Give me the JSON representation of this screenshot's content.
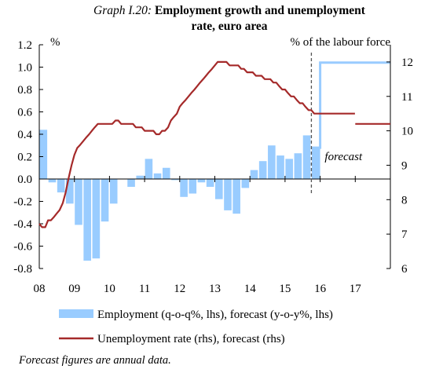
{
  "chart_data": {
    "type": "bar+line",
    "title_prefix": "Graph I.20:",
    "title_line1": "Employment growth and unemployment",
    "title_line2": "rate, euro area",
    "left_axis": {
      "unit": "%",
      "ylim": [
        -0.8,
        1.2
      ],
      "ticks": [
        "-0.8",
        "-0.6",
        "-0.4",
        "-0.2",
        "0.0",
        "0.2",
        "0.4",
        "0.6",
        "0.8",
        "1.0",
        "1.2"
      ],
      "tick_values": [
        -0.8,
        -0.6,
        -0.4,
        -0.2,
        0.0,
        0.2,
        0.4,
        0.6,
        0.8,
        1.0,
        1.2
      ]
    },
    "right_axis": {
      "unit": "% of the labour force",
      "ylim": [
        6,
        12.5
      ],
      "ticks": [
        "6",
        "7",
        "8",
        "9",
        "10",
        "11",
        "12"
      ],
      "tick_values": [
        6,
        7,
        8,
        9,
        10,
        11,
        12
      ]
    },
    "x_axis": {
      "xlim": [
        2008,
        2018
      ],
      "ticks": [
        "08",
        "09",
        "10",
        "11",
        "12",
        "13",
        "14",
        "15",
        "16",
        "17"
      ],
      "tick_values": [
        2008,
        2009,
        2010,
        2011,
        2012,
        2013,
        2014,
        2015,
        2016,
        2017
      ]
    },
    "forecast_start": 2015.75,
    "forecast_label": "forecast",
    "series": [
      {
        "name": "Employment (q-o-q%, lhs), forecast (y-o-y%, lhs)",
        "type": "bar",
        "axis": "left",
        "color": "#99ccff",
        "x": [
          2008.0,
          2008.25,
          2008.5,
          2008.75,
          2009.0,
          2009.25,
          2009.5,
          2009.75,
          2010.0,
          2010.25,
          2010.5,
          2010.75,
          2011.0,
          2011.25,
          2011.5,
          2011.75,
          2012.0,
          2012.25,
          2012.5,
          2012.75,
          2013.0,
          2013.25,
          2013.5,
          2013.75,
          2014.0,
          2014.25,
          2014.5,
          2014.75,
          2015.0,
          2015.25,
          2015.5
        ],
        "values": [
          0.44,
          -0.03,
          -0.12,
          -0.22,
          -0.41,
          -0.73,
          -0.71,
          -0.38,
          -0.22,
          0.0,
          -0.07,
          0.03,
          0.18,
          0.05,
          0.1,
          -0.01,
          -0.16,
          -0.13,
          -0.03,
          -0.07,
          -0.18,
          -0.28,
          -0.31,
          -0.08,
          0.08,
          0.16,
          0.3,
          0.21,
          0.18,
          0.23,
          0.39
        ]
      },
      {
        "name": "Employment forecast (y-o-y%, lhs)",
        "type": "step",
        "axis": "left",
        "color": "#99ccff",
        "x": [
          2015.75,
          2016.0,
          2016.0,
          2018.0
        ],
        "values": [
          0.28,
          0.28,
          1.04,
          1.04
        ]
      },
      {
        "name": "Unemployment rate (rhs), forecast (rhs)",
        "type": "line",
        "axis": "right",
        "color": "#a52a2a",
        "x": [
          2008.0,
          2008.08,
          2008.17,
          2008.25,
          2008.33,
          2008.42,
          2008.5,
          2008.58,
          2008.67,
          2008.75,
          2008.83,
          2008.92,
          2009.0,
          2009.08,
          2009.17,
          2009.25,
          2009.33,
          2009.42,
          2009.5,
          2009.58,
          2009.67,
          2009.75,
          2009.83,
          2009.92,
          2010.0,
          2010.08,
          2010.17,
          2010.25,
          2010.33,
          2010.42,
          2010.5,
          2010.58,
          2010.67,
          2010.75,
          2010.83,
          2010.92,
          2011.0,
          2011.08,
          2011.17,
          2011.25,
          2011.33,
          2011.42,
          2011.5,
          2011.58,
          2011.67,
          2011.75,
          2011.83,
          2011.92,
          2012.0,
          2012.08,
          2012.17,
          2012.25,
          2012.33,
          2012.42,
          2012.5,
          2012.58,
          2012.67,
          2012.75,
          2012.83,
          2012.92,
          2013.0,
          2013.08,
          2013.17,
          2013.25,
          2013.33,
          2013.42,
          2013.5,
          2013.58,
          2013.67,
          2013.75,
          2013.83,
          2013.92,
          2014.0,
          2014.08,
          2014.17,
          2014.25,
          2014.33,
          2014.42,
          2014.5,
          2014.58,
          2014.67,
          2014.75,
          2014.83,
          2014.92,
          2015.0,
          2015.08,
          2015.17,
          2015.25,
          2015.33,
          2015.42,
          2015.5,
          2015.58,
          2015.67,
          2015.75,
          2015.83,
          2016.0,
          2016.2,
          2016.4,
          2016.6,
          2016.8,
          2016.99
        ],
        "values": [
          7.3,
          7.2,
          7.2,
          7.4,
          7.4,
          7.5,
          7.6,
          7.7,
          7.9,
          8.2,
          8.6,
          9.0,
          9.3,
          9.5,
          9.6,
          9.7,
          9.8,
          9.9,
          10.0,
          10.1,
          10.2,
          10.2,
          10.2,
          10.2,
          10.2,
          10.2,
          10.3,
          10.3,
          10.2,
          10.2,
          10.2,
          10.2,
          10.2,
          10.1,
          10.1,
          10.1,
          10.0,
          10.0,
          10.0,
          10.0,
          9.9,
          9.9,
          10.0,
          10.0,
          10.1,
          10.3,
          10.4,
          10.5,
          10.7,
          10.8,
          10.9,
          11.0,
          11.1,
          11.2,
          11.3,
          11.4,
          11.5,
          11.6,
          11.7,
          11.8,
          11.9,
          12.0,
          12.0,
          12.0,
          12.0,
          11.9,
          11.9,
          11.9,
          11.9,
          11.8,
          11.8,
          11.7,
          11.7,
          11.7,
          11.6,
          11.6,
          11.6,
          11.5,
          11.5,
          11.5,
          11.4,
          11.4,
          11.3,
          11.2,
          11.2,
          11.1,
          11.0,
          11.0,
          10.9,
          10.8,
          10.8,
          10.7,
          10.6,
          10.6,
          10.5,
          10.5,
          10.5,
          10.5,
          10.5,
          10.5,
          10.5
        ]
      },
      {
        "name": "Unemployment rate forecast 2017 (rhs)",
        "type": "line",
        "axis": "right",
        "color": "#a52a2a",
        "x": [
          2017.0,
          2018.0
        ],
        "values": [
          10.2,
          10.2
        ]
      }
    ],
    "legend": [
      {
        "label": "Employment (q-o-q%, lhs), forecast (y-o-y%, lhs)",
        "swatch": "bar",
        "color": "#99ccff"
      },
      {
        "label": "Unemployment rate (rhs), forecast (rhs)",
        "swatch": "line",
        "color": "#a52a2a"
      }
    ],
    "note": "Forecast figures are annual data."
  }
}
